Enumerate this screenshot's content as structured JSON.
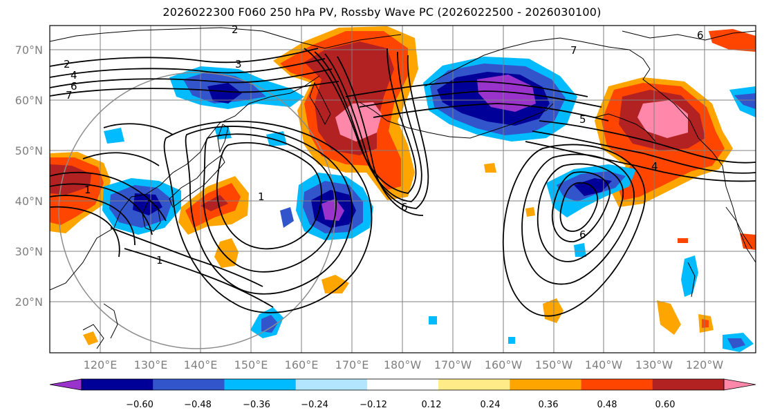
{
  "title": "2026022300 F060 250 hPa PV, Rossby Wave PC (2026022500 - 2026030100)",
  "latitude_labels": [
    "70°N",
    "60°N",
    "50°N",
    "40°N",
    "30°N",
    "20°N"
  ],
  "longitude_labels": [
    "120°E",
    "130°E",
    "140°E",
    "150°E",
    "160°E",
    "170°E",
    "180°W",
    "170°W",
    "160°W",
    "150°W",
    "140°W",
    "130°W",
    "120°W"
  ],
  "colorbar": {
    "colors": [
      "#9933cc",
      "#000099",
      "#3355cc",
      "#00bbff",
      "#b3e5ff",
      "#ffffff",
      "#ffeb88",
      "#ffa500",
      "#ff4500",
      "#b22222",
      "#ff88aa"
    ],
    "tick_labels": [
      "−0.60",
      "−0.48",
      "−0.36",
      "−0.24",
      "−0.12",
      "0.12",
      "0.24",
      "0.36",
      "0.48",
      "0.60"
    ]
  },
  "contour_labels": [
    "2",
    "4",
    "6",
    "7",
    "3",
    "1",
    "1",
    "2",
    "6",
    "7",
    "5",
    "4",
    "6",
    "6",
    "1"
  ]
}
